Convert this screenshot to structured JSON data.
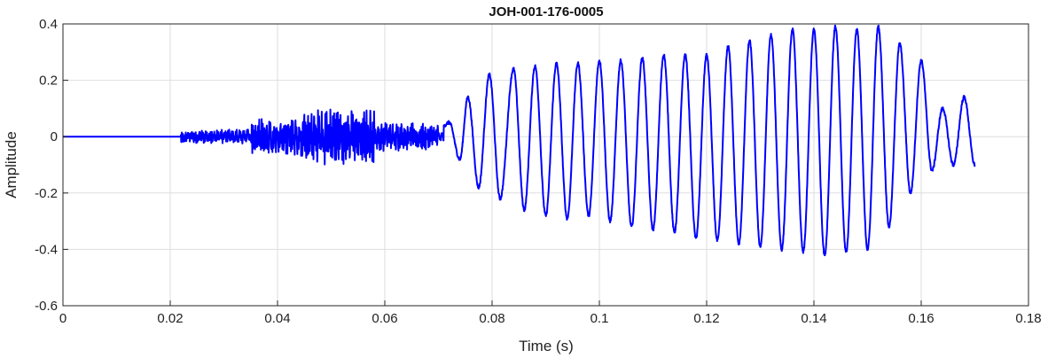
{
  "chart_data": {
    "type": "line",
    "title": "JOH-001-176-0005",
    "xlabel": "Time (s)",
    "ylabel": "Amplitude",
    "xlim": [
      0,
      0.18
    ],
    "ylim": [
      -0.6,
      0.4
    ],
    "xticks": [
      0,
      0.02,
      0.04,
      0.06,
      0.08,
      0.1,
      0.12,
      0.14,
      0.16,
      0.18
    ],
    "xtick_labels": [
      "0",
      "0.02",
      "0.04",
      "0.06",
      "0.08",
      "0.1",
      "0.12",
      "0.14",
      "0.16",
      "0.18"
    ],
    "yticks": [
      -0.6,
      -0.4,
      -0.2,
      0,
      0.2,
      0.4
    ],
    "ytick_labels": [
      "-0.6",
      "-0.4",
      "-0.2",
      "0",
      "0.2",
      "0.4"
    ],
    "grid": true,
    "series": [
      {
        "color": "#0000ff",
        "x_start": 0,
        "x_end": 0.17,
        "description_points": {
          "x": [
            0.0,
            0.022,
            0.03,
            0.04,
            0.05,
            0.06,
            0.07,
            0.072,
            0.074,
            0.0755,
            0.0775,
            0.0795,
            0.0815,
            0.084,
            0.086,
            0.088,
            0.09,
            0.092,
            0.094,
            0.096,
            0.098,
            0.1,
            0.102,
            0.104,
            0.106,
            0.108,
            0.11,
            0.112,
            0.114,
            0.116,
            0.118,
            0.12,
            0.122,
            0.124,
            0.126,
            0.128,
            0.13,
            0.132,
            0.134,
            0.136,
            0.138,
            0.14,
            0.142,
            0.144,
            0.146,
            0.148,
            0.15,
            0.152,
            0.154,
            0.156,
            0.158,
            0.16,
            0.162,
            0.164,
            0.166,
            0.168,
            0.17
          ],
          "y": [
            0.0,
            0.0,
            0.02,
            0.05,
            0.07,
            0.04,
            0.02,
            0.05,
            -0.08,
            0.14,
            -0.18,
            0.22,
            -0.22,
            0.24,
            -0.26,
            0.25,
            -0.28,
            0.26,
            -0.29,
            0.26,
            -0.28,
            0.27,
            -0.3,
            0.27,
            -0.32,
            0.28,
            -0.33,
            0.29,
            -0.34,
            0.29,
            -0.36,
            0.29,
            -0.37,
            0.32,
            -0.38,
            0.34,
            -0.39,
            0.36,
            -0.4,
            0.38,
            -0.41,
            0.38,
            -0.42,
            0.39,
            -0.41,
            0.38,
            -0.4,
            0.39,
            -0.32,
            0.33,
            -0.2,
            0.27,
            -0.12,
            0.1,
            -0.1,
            0.14,
            -0.1
          ]
        }
      }
    ]
  }
}
